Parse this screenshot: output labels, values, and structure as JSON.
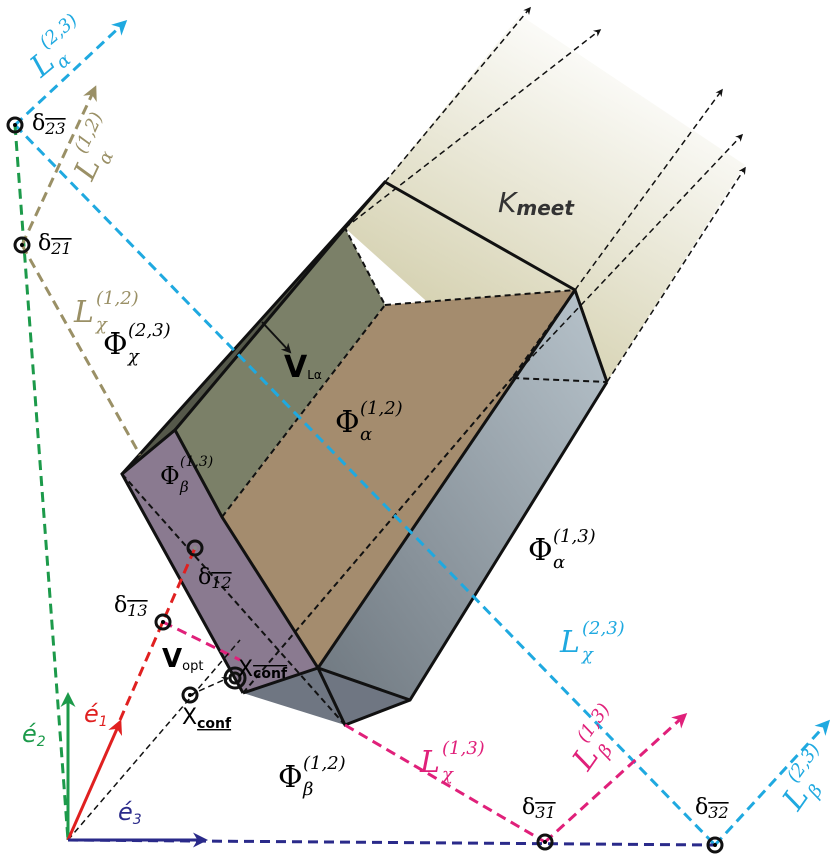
{
  "labels": [
    {
      "base": "L",
      "sub": "α",
      "sup": "(2,3)"
    },
    {
      "base": "δ",
      "sub": "23"
    },
    {
      "base": "L",
      "sub": "α",
      "sup": "(1,2)"
    },
    {
      "base": "δ",
      "sub": "21"
    },
    {
      "base": "L",
      "sub": "χ",
      "sup": "(1,2)"
    },
    {
      "base": "Φ",
      "sub": "χ",
      "sup": "(2,3)"
    },
    {
      "base": "V",
      "sub": "Lα"
    },
    {
      "base": "Φ",
      "sub": "α",
      "sup": "(1,2)"
    },
    {
      "base": "K",
      "sub": "meet"
    },
    {
      "base": "Φ",
      "sub": "β",
      "sup": "(1,3)"
    },
    {
      "base": "δ",
      "sub": "12"
    },
    {
      "base": "δ",
      "sub": "13"
    },
    {
      "base": "Φ",
      "sub": "α",
      "sup": "(1,3)"
    },
    {
      "base": "V",
      "sub": "opt"
    },
    {
      "base": "X",
      "sub": "conf"
    },
    {
      "base": "X",
      "sub": "conf"
    },
    {
      "base": "é",
      "sub": "1"
    },
    {
      "base": "é",
      "sub": "2"
    },
    {
      "base": "é",
      "sub": "3"
    },
    {
      "base": "L",
      "sub": "χ",
      "sup": "(2,3)"
    },
    {
      "base": "Φ",
      "sub": "β",
      "sup": "(1,2)"
    },
    {
      "base": "L",
      "sub": "χ",
      "sup": "(1,3)"
    },
    {
      "base": "L",
      "sub": "β",
      "sup": "(1,3)"
    },
    {
      "base": "δ",
      "sub": "31"
    },
    {
      "base": "δ",
      "sub": "32"
    },
    {
      "base": "L",
      "sub": "β",
      "sup": "(2,3)"
    }
  ]
}
